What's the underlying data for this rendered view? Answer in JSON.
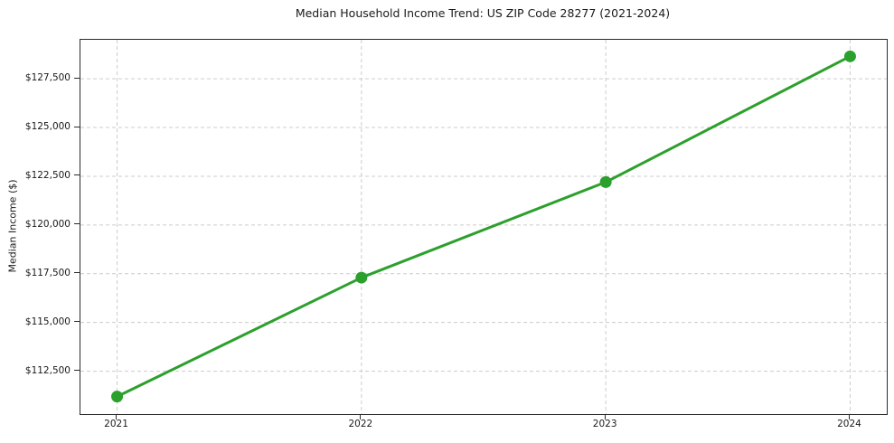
{
  "chart_data": {
    "type": "line",
    "title": "Median Household Income Trend: US ZIP Code 28277 (2021-2024)",
    "xlabel": "",
    "ylabel": "Median Income ($)",
    "x": [
      2021,
      2022,
      2023,
      2024
    ],
    "x_tick_labels": [
      "2021",
      "2022",
      "2023",
      "2024"
    ],
    "series": [
      {
        "name": "Median household income",
        "values": [
          111200,
          117300,
          122200,
          128650
        ]
      }
    ],
    "y_ticks": [
      112500,
      115000,
      117500,
      120000,
      122500,
      125000,
      127500
    ],
    "y_tick_labels": [
      "$112,500",
      "$115,000",
      "$117,500",
      "$120,000",
      "$122,500",
      "$125,000",
      "$127,500"
    ],
    "xlim": [
      2020.85,
      2024.15
    ],
    "ylim": [
      110300,
      129500
    ],
    "grid": true,
    "grid_style": "dashed",
    "legend": false,
    "colors": {
      "line": "#2ca02c",
      "marker": "#2ca02c",
      "grid": "#cccccc",
      "axis": "#2b2b2b",
      "background": "#ffffff"
    }
  }
}
